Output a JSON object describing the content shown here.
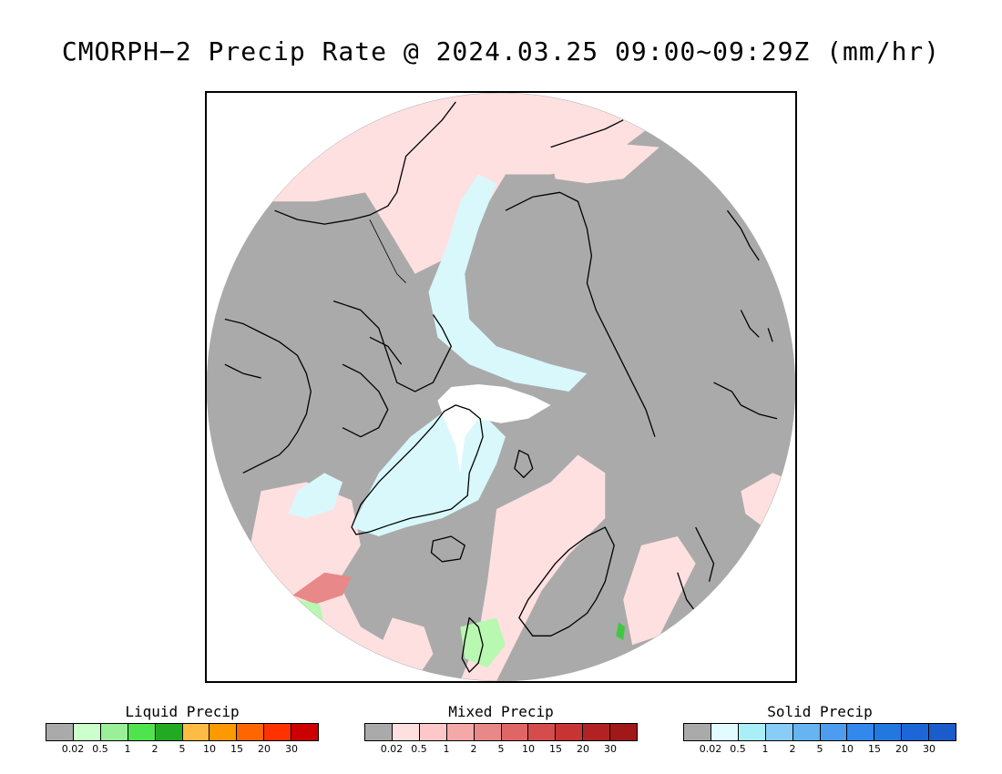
{
  "title": "CMORPH−2 Precip Rate @ 2024.03.25 09:00~09:29Z (mm/hr)",
  "map": {
    "projection": "north polar stereographic",
    "colors": {
      "no_precip": "#aaaaaa",
      "mixed_light": "#ffe0e0",
      "mixed_moderate": "#e88888",
      "snow_light": "#d8f8fc",
      "snow_moderate": "#a8eef8",
      "pole_gap": "#ffffff",
      "liquid_light": "#b8f8b0",
      "liquid_moderate": "#40c840",
      "coastline": "#000000"
    }
  },
  "legends": [
    {
      "title": "Liquid Precip",
      "colors": [
        "#aaaaaa",
        "#ccffcc",
        "#99f099",
        "#4fe44f",
        "#22aa22",
        "#ffbb44",
        "#ff9900",
        "#ff6600",
        "#ff3300",
        "#cc0000"
      ],
      "ticks": [
        "0.02",
        "0.5",
        "1",
        "2",
        "5",
        "10",
        "15",
        "20",
        "30"
      ]
    },
    {
      "title": "Mixed Precip",
      "colors": [
        "#aaaaaa",
        "#ffe0e0",
        "#ffc8c8",
        "#f4a8a8",
        "#e88888",
        "#e06666",
        "#d44c4c",
        "#c83434",
        "#b22222",
        "#a01818"
      ],
      "ticks": [
        "0.02",
        "0.5",
        "1",
        "2",
        "5",
        "10",
        "15",
        "20",
        "30"
      ]
    },
    {
      "title": "Solid Precip",
      "colors": [
        "#aaaaaa",
        "#e0fcff",
        "#aaeef8",
        "#88ccf8",
        "#66b4f0",
        "#4c9cf0",
        "#3388ee",
        "#2277e0",
        "#1d66d8",
        "#1a5ccc"
      ],
      "ticks": [
        "0.02",
        "0.5",
        "1",
        "2",
        "5",
        "10",
        "15",
        "20",
        "30"
      ]
    }
  ]
}
